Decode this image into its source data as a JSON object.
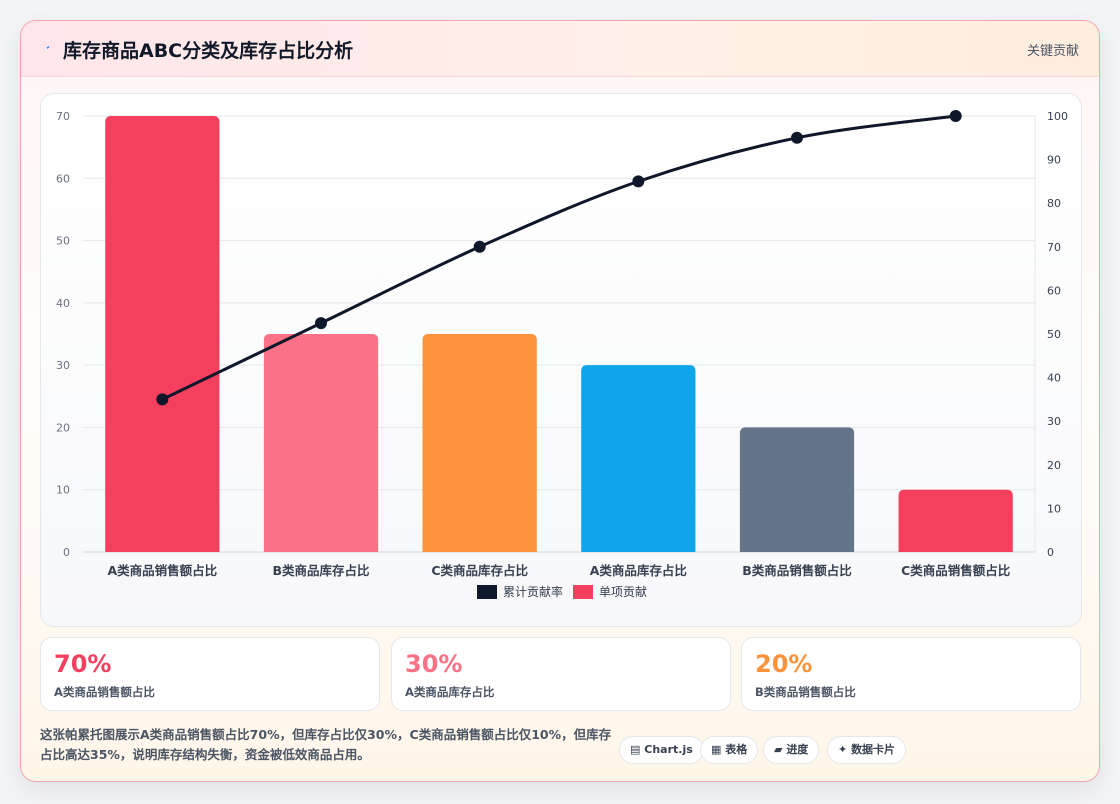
{
  "header": {
    "icon": "lightning-icon",
    "title": "库存商品ABC分类及库存占比分析",
    "tag": "关键贡献"
  },
  "colors": {
    "a_sales": "#f43f5e",
    "b_stock": "#fb7185",
    "c_stock": "#fb923c",
    "a_stock": "#0ea5e9",
    "b_sales": "#64748b",
    "c_sales": "#f43f5e",
    "line": "#0f172a"
  },
  "chart_data": {
    "type": "bar",
    "categories": [
      "A类商品销售额占比",
      "B类商品库存占比",
      "C类商品库存占比",
      "A类商品库存占比",
      "B类商品销售额占比",
      "C类商品销售额占比"
    ],
    "series": [
      {
        "name": "累计贡献率",
        "type": "line",
        "axis": "right",
        "values": [
          35,
          52.5,
          70,
          85,
          95,
          100
        ]
      },
      {
        "name": "单项贡献",
        "type": "bar",
        "axis": "left",
        "values": [
          70,
          35,
          35,
          30,
          20,
          10
        ]
      }
    ],
    "bar_colors": [
      "#f43f5e",
      "#fb7185",
      "#fb923c",
      "#0ea5e9",
      "#64748b",
      "#f43f5e"
    ],
    "y_left": {
      "min": 0,
      "max": 70,
      "ticks": [
        0,
        10,
        20,
        30,
        40,
        50,
        60,
        70
      ]
    },
    "y_right": {
      "min": 0,
      "max": 100,
      "ticks": [
        0,
        10,
        20,
        30,
        40,
        50,
        60,
        70,
        80,
        90,
        100
      ]
    },
    "legend": {
      "position": "bottom",
      "items": [
        "累计贡献率",
        "单项贡献"
      ],
      "colors": [
        "#0f172a",
        "#f43f5e"
      ]
    },
    "grid": true
  },
  "stats": [
    {
      "value": "70%",
      "label": "A类商品销售额占比",
      "color": "#f43f5e"
    },
    {
      "value": "30%",
      "label": "A类商品库存占比",
      "color": "#fb7185"
    },
    {
      "value": "20%",
      "label": "B类商品销售额占比",
      "color": "#fb923c"
    }
  ],
  "description": "这张帕累托图展示A类商品销售额占比70%，但库存占比仅30%，C类商品销售额占比仅10%，但库存占比高达35%，说明库存结构失衡，资金被低效商品占用。",
  "pills": [
    {
      "icon": "chart-icon",
      "glyph": "▤",
      "label": "Chart.js"
    },
    {
      "icon": "table-icon",
      "glyph": "▦",
      "label": "表格"
    },
    {
      "icon": "progress-icon",
      "glyph": "▰",
      "label": "进度"
    },
    {
      "icon": "card-icon",
      "glyph": "✦",
      "label": "数据卡片"
    }
  ]
}
